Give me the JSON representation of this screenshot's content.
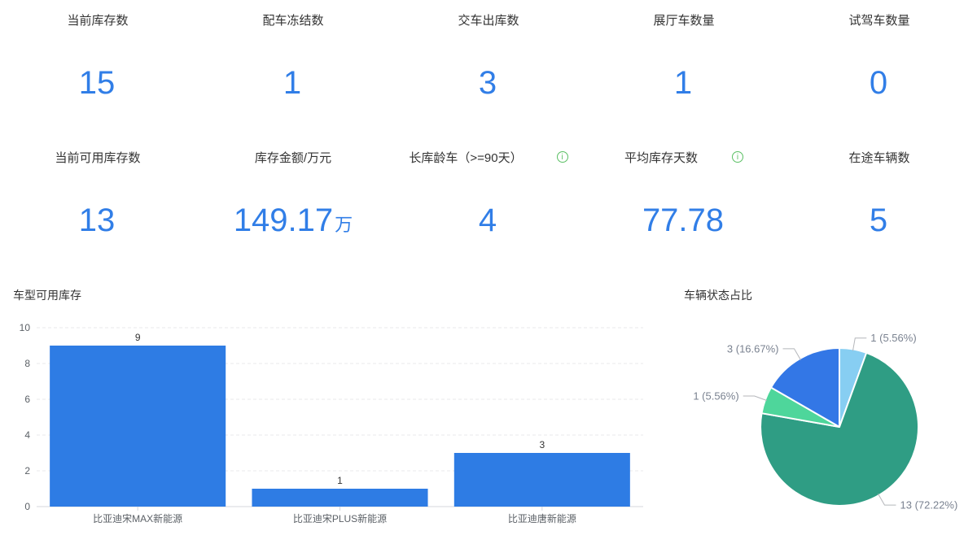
{
  "colors": {
    "accent_blue": "#317ee7",
    "info_green": "#5abf63",
    "bar_blue": "#2e7ce4",
    "axis_line": "#d4d7dc",
    "grid_line": "#e9e9eb",
    "axis_text": "#5b6066",
    "pie_label_text": "#7a8290",
    "pie_leader_line": "#b4b6ba"
  },
  "icons": {
    "info": "i"
  },
  "stats": {
    "row1": [
      {
        "label": "当前库存数",
        "value": "15",
        "suffix": ""
      },
      {
        "label": "配车冻结数",
        "value": "1",
        "suffix": ""
      },
      {
        "label": "交车出库数",
        "value": "3",
        "suffix": ""
      },
      {
        "label": "展厅车数量",
        "value": "1",
        "suffix": ""
      },
      {
        "label": "试驾车数量",
        "value": "0",
        "suffix": ""
      }
    ],
    "row2": [
      {
        "label": "当前可用库存数",
        "value": "13",
        "suffix": ""
      },
      {
        "label": "库存金额/万元",
        "value": "149.17",
        "suffix": "万"
      },
      {
        "label": "长库龄车（>=90天）",
        "value": "4",
        "suffix": "",
        "has_info": true
      },
      {
        "label": "平均库存天数",
        "value": "77.78",
        "suffix": "",
        "has_info": true
      },
      {
        "label": "在途车辆数",
        "value": "5",
        "suffix": ""
      }
    ]
  },
  "chart_data": [
    {
      "type": "bar",
      "title": "车型可用库存",
      "categories": [
        "比亚迪宋MAX新能源",
        "比亚迪宋PLUS新能源",
        "比亚迪唐新能源"
      ],
      "values": [
        9,
        1,
        3
      ],
      "xlabel": "",
      "ylabel": "",
      "ylim": [
        0,
        10
      ],
      "yticks": [
        0,
        2,
        4,
        6,
        8,
        10
      ],
      "grid": true,
      "value_labels": true,
      "legend": "none",
      "bar_color": "#2e7ce4"
    },
    {
      "type": "pie",
      "title": "车辆状态占比",
      "start_angle": "top",
      "direction": "clockwise",
      "legend": "none",
      "slices": [
        {
          "value": 1,
          "percent": "5.56%",
          "label": "1 (5.56%)",
          "color": "#87cef2"
        },
        {
          "value": 13,
          "percent": "72.22%",
          "label": "13 (72.22%)",
          "color": "#2f9d84"
        },
        {
          "value": 1,
          "percent": "5.56%",
          "label": "1 (5.56%)",
          "color": "#4ed69b"
        },
        {
          "value": 3,
          "percent": "16.67%",
          "label": "3 (16.67%)",
          "color": "#3377e6"
        }
      ]
    }
  ]
}
